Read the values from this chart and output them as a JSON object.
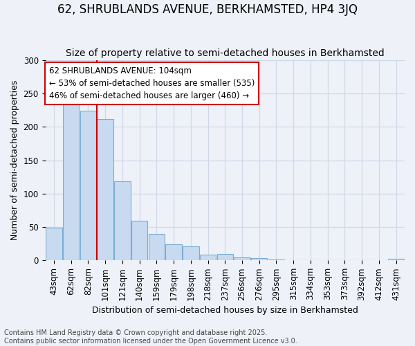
{
  "title": "62, SHRUBLANDS AVENUE, BERKHAMSTED, HP4 3JQ",
  "subtitle": "Size of property relative to semi-detached houses in Berkhamsted",
  "xlabel": "Distribution of semi-detached houses by size in Berkhamsted",
  "ylabel": "Number of semi-detached properties",
  "footer": "Contains HM Land Registry data © Crown copyright and database right 2025.\nContains public sector information licensed under the Open Government Licence v3.0.",
  "categories": [
    "43sqm",
    "62sqm",
    "82sqm",
    "101sqm",
    "121sqm",
    "140sqm",
    "159sqm",
    "179sqm",
    "198sqm",
    "218sqm",
    "237sqm",
    "256sqm",
    "276sqm",
    "295sqm",
    "315sqm",
    "334sqm",
    "353sqm",
    "373sqm",
    "392sqm",
    "412sqm",
    "431sqm"
  ],
  "values": [
    49,
    242,
    224,
    212,
    119,
    59,
    40,
    24,
    21,
    9,
    10,
    4,
    3,
    1,
    0,
    0,
    0,
    0,
    0,
    0,
    2
  ],
  "bar_color": "#c8daf0",
  "bar_edge_color": "#7aadd4",
  "marker_line_index": 3,
  "marker_label": "62 SHRUBLANDS AVENUE: 104sqm",
  "pct_smaller": "53% of semi-detached houses are smaller (535)",
  "pct_larger": "46% of semi-detached houses are larger (460)",
  "annotation_box_color": "#cc0000",
  "grid_color": "#d0d8e8",
  "bg_color": "#eef2f8",
  "ylim": [
    0,
    300
  ],
  "yticks": [
    0,
    50,
    100,
    150,
    200,
    250,
    300
  ],
  "title_fontsize": 12,
  "subtitle_fontsize": 10,
  "axis_label_fontsize": 9,
  "tick_fontsize": 8.5,
  "annotation_fontsize": 8.5,
  "footer_fontsize": 7
}
